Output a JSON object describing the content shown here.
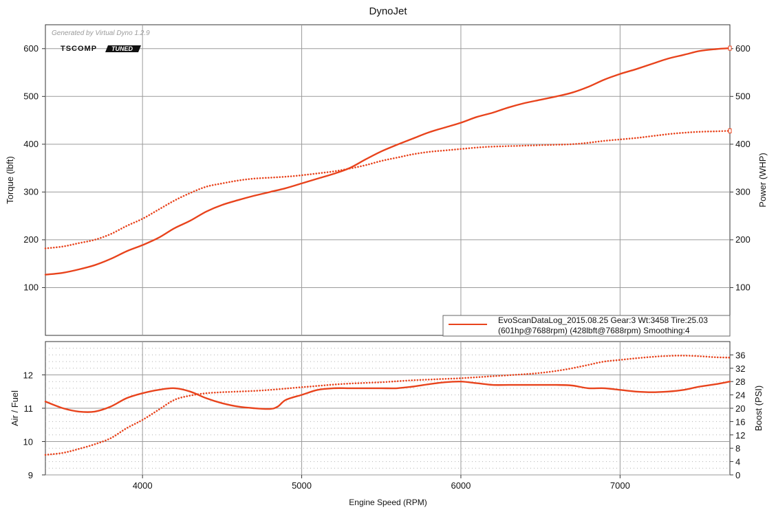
{
  "chart_data": [
    {
      "type": "line",
      "title": "DynoJet",
      "subtitle": "Generated by Virtual Dyno 1.2.9",
      "logo": {
        "left": "TSCOMP",
        "right": "TUNED"
      },
      "ylabel": "Torque (lbft)",
      "y2label": "Power (WHP)",
      "xlim": [
        3390,
        7690
      ],
      "ylim": [
        0,
        650
      ],
      "y2lim": [
        0,
        650
      ],
      "yticks": [
        100,
        200,
        300,
        400,
        500,
        600
      ],
      "y2ticks": [
        100,
        200,
        300,
        400,
        500,
        600
      ],
      "grid": true,
      "legend": {
        "placement": "bottom-right",
        "line1": "EvoScanDataLog_2015.08.25 Gear:3 Wt:3458 Tire:25.03",
        "line2": "(601hp@7688rpm) (428lbft@7688rpm) Smoothing:4"
      },
      "series": [
        {
          "style": "solid",
          "axis": "right",
          "color": "#e8431c",
          "x": [
            3390,
            3500,
            3600,
            3700,
            3800,
            3900,
            4000,
            4100,
            4200,
            4300,
            4400,
            4500,
            4600,
            4700,
            4800,
            4900,
            5000,
            5100,
            5200,
            5300,
            5400,
            5500,
            5600,
            5700,
            5800,
            5900,
            6000,
            6100,
            6200,
            6300,
            6400,
            6500,
            6600,
            6700,
            6800,
            6900,
            7000,
            7100,
            7200,
            7300,
            7400,
            7500,
            7600,
            7690
          ],
          "y": [
            127,
            131,
            138,
            147,
            160,
            176,
            189,
            204,
            224,
            240,
            259,
            273,
            283,
            292,
            300,
            308,
            318,
            328,
            338,
            350,
            368,
            385,
            399,
            412,
            425,
            435,
            445,
            457,
            466,
            477,
            486,
            493,
            500,
            508,
            520,
            535,
            547,
            557,
            568,
            579,
            587,
            595,
            599,
            601
          ]
        },
        {
          "style": "dotted",
          "axis": "left",
          "color": "#e8431c",
          "x": [
            3390,
            3500,
            3600,
            3700,
            3800,
            3900,
            4000,
            4100,
            4200,
            4300,
            4400,
            4500,
            4600,
            4700,
            4800,
            4900,
            5000,
            5100,
            5200,
            5300,
            5400,
            5500,
            5600,
            5700,
            5800,
            5900,
            6000,
            6100,
            6200,
            6300,
            6400,
            6500,
            6600,
            6700,
            6800,
            6900,
            7000,
            7100,
            7200,
            7300,
            7400,
            7500,
            7600,
            7690
          ],
          "y": [
            182,
            186,
            193,
            200,
            212,
            229,
            244,
            263,
            282,
            298,
            311,
            318,
            324,
            328,
            330,
            332,
            335,
            339,
            343,
            349,
            356,
            365,
            372,
            379,
            384,
            387,
            390,
            393,
            395,
            396,
            397,
            398,
            399,
            400,
            403,
            407,
            410,
            413,
            417,
            421,
            424,
            426,
            427,
            428
          ]
        }
      ]
    },
    {
      "type": "line",
      "xlabel": "Engine Speed (RPM)",
      "ylabel": "Air / Fuel",
      "y2label": "Boost (PSI)",
      "xlim": [
        3390,
        7690
      ],
      "ylim": [
        9,
        13
      ],
      "y2lim": [
        0,
        40
      ],
      "yticks": [
        9,
        10,
        11,
        12
      ],
      "y2ticks": [
        0,
        4,
        8,
        12,
        16,
        20,
        24,
        28,
        32,
        36
      ],
      "xticks": [
        4000,
        5000,
        6000,
        7000
      ],
      "grid": true,
      "series": [
        {
          "style": "solid",
          "axis": "left",
          "color": "#e8431c",
          "x": [
            3390,
            3500,
            3600,
            3700,
            3800,
            3900,
            4000,
            4100,
            4200,
            4300,
            4400,
            4500,
            4600,
            4700,
            4800,
            4850,
            4900,
            5000,
            5100,
            5200,
            5300,
            5400,
            5500,
            5600,
            5700,
            5800,
            5900,
            6000,
            6100,
            6200,
            6300,
            6400,
            6500,
            6600,
            6700,
            6800,
            6900,
            7000,
            7100,
            7200,
            7300,
            7400,
            7500,
            7600,
            7690
          ],
          "y": [
            11.2,
            11.0,
            10.9,
            10.9,
            11.05,
            11.3,
            11.45,
            11.55,
            11.6,
            11.5,
            11.3,
            11.15,
            11.05,
            11.0,
            10.98,
            11.05,
            11.25,
            11.4,
            11.55,
            11.6,
            11.6,
            11.6,
            11.6,
            11.6,
            11.65,
            11.72,
            11.78,
            11.8,
            11.75,
            11.7,
            11.7,
            11.7,
            11.7,
            11.7,
            11.68,
            11.6,
            11.6,
            11.55,
            11.5,
            11.48,
            11.5,
            11.55,
            11.65,
            11.72,
            11.8
          ]
        },
        {
          "style": "dotted",
          "axis": "right",
          "color": "#e8431c",
          "x": [
            3390,
            3500,
            3600,
            3700,
            3800,
            3900,
            4000,
            4100,
            4200,
            4300,
            4400,
            4500,
            4600,
            4700,
            4800,
            4900,
            5000,
            5100,
            5200,
            5300,
            5400,
            5500,
            5600,
            5700,
            5800,
            5900,
            6000,
            6100,
            6200,
            6300,
            6400,
            6500,
            6600,
            6700,
            6800,
            6900,
            7000,
            7100,
            7200,
            7300,
            7400,
            7500,
            7600,
            7690
          ],
          "y": [
            6.0,
            6.6,
            7.8,
            9.2,
            11.0,
            14.0,
            16.5,
            19.5,
            22.5,
            23.8,
            24.5,
            24.8,
            25.0,
            25.2,
            25.5,
            25.9,
            26.3,
            26.7,
            27.1,
            27.4,
            27.6,
            27.8,
            28.1,
            28.4,
            28.6,
            28.8,
            29.0,
            29.3,
            29.6,
            29.9,
            30.2,
            30.6,
            31.2,
            32.0,
            33.0,
            34.0,
            34.5,
            35.0,
            35.4,
            35.7,
            35.8,
            35.6,
            35.3,
            35.2
          ]
        }
      ]
    }
  ]
}
